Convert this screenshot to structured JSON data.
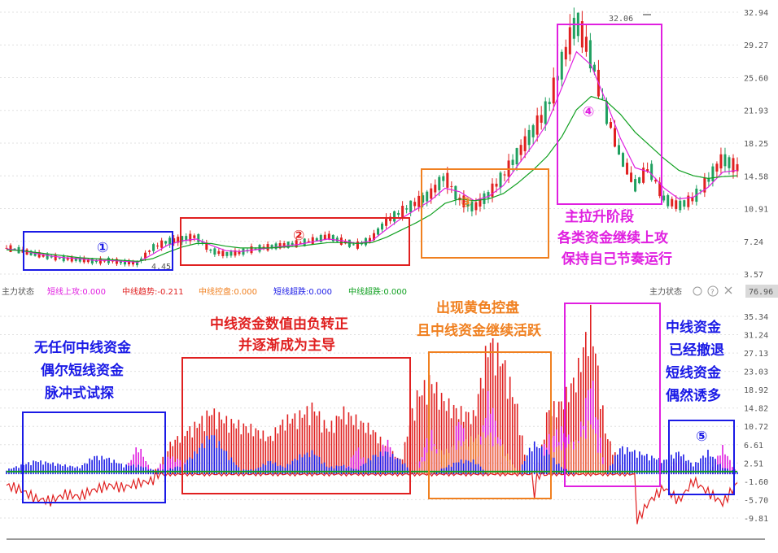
{
  "colors": {
    "blue": "#1a1ae6",
    "red": "#e02020",
    "orange": "#f08020",
    "magenta": "#e020e0",
    "green": "#10a020",
    "candleUp": "#e02020",
    "candleDown": "#20a060",
    "grid": "#e0e0e0"
  },
  "upper_axis": [
    "32.94",
    "29.27",
    "25.60",
    "21.93",
    "18.25",
    "14.58",
    "10.91",
    "7.24",
    "3.57"
  ],
  "lower_axis": [
    "35.34",
    "31.24",
    "27.13",
    "23.03",
    "18.92",
    "14.82",
    "10.72",
    "6.61",
    "2.51",
    "-1.60",
    "-5.70",
    "-9.81"
  ],
  "price_labels": {
    "high": "32.06",
    "low": "4.45"
  },
  "indicator_bar": {
    "title": "主力状态",
    "items": [
      {
        "label": "短线上攻:0.000",
        "color": "#e020e0"
      },
      {
        "label": "中线趋势:-0.211",
        "color": "#e02020"
      },
      {
        "label": "中线控盘:0.000",
        "color": "#f08020"
      },
      {
        "label": "短线超跌:0.000",
        "color": "#1a1ae6"
      },
      {
        "label": "中线超跌:0.000",
        "color": "#10a020"
      }
    ],
    "right_title": "主力状态",
    "right_value": "76.96"
  },
  "annotations": {
    "box1": "①",
    "box2": "②",
    "box3": "③",
    "box4": "④",
    "box5": "⑤",
    "stage4": [
      "主拉升阶段",
      "各类资金继续上攻",
      "保持自己节奏运行"
    ],
    "left": [
      "无任何中线资金",
      "偶尔短线资金",
      "脉冲式试探"
    ],
    "mid": [
      "中线资金数值由负转正",
      "并逐渐成为主导"
    ],
    "yellow": [
      "出现黄色控盘",
      "且中线资金继续活跃"
    ],
    "right": [
      "中线资金",
      "已经撤退",
      "短线资金",
      "偶然诱多"
    ]
  },
  "chart_data": [
    {
      "type": "line",
      "title": "",
      "ylim": [
        3.57,
        32.94
      ],
      "yticks": [
        32.94,
        29.27,
        25.6,
        21.93,
        18.25,
        14.58,
        10.91,
        7.24,
        3.57
      ],
      "grid": true,
      "x": [
        0,
        10,
        20,
        30,
        40,
        50,
        60,
        70,
        80,
        90,
        100,
        110,
        120,
        130,
        140,
        150,
        160,
        170,
        180,
        190,
        200,
        210,
        220,
        230,
        240,
        250,
        260,
        270,
        280,
        290,
        300,
        310,
        320,
        330,
        340,
        350,
        360,
        370,
        380,
        390,
        400,
        410,
        420,
        430,
        440,
        450,
        460,
        470,
        480,
        490,
        500
      ],
      "series": [
        {
          "values": [
            6.5,
            6.2,
            5.8,
            5.5,
            5.3,
            5.2,
            5.0,
            5.1,
            4.9,
            4.8,
            6.5,
            7.2,
            7.5,
            7.8,
            6.2,
            5.8,
            6.0,
            6.4,
            6.6,
            6.8,
            7.0,
            7.3,
            7.8,
            7.2,
            6.8,
            7.5,
            9.5,
            10.5,
            11.5,
            12.5,
            14.5,
            12.0,
            11.0,
            12.5,
            14.5,
            17.0,
            19.5,
            22.0,
            27.0,
            32.0,
            28.0,
            22.0,
            17.0,
            13.5,
            15.5,
            12.0,
            11.2,
            12.0,
            14.0,
            16.5,
            15.5
          ]
        },
        {
          "values": [
            6.4,
            6.2,
            5.9,
            5.6,
            5.4,
            5.3,
            5.1,
            5.1,
            5.0,
            4.9,
            5.8,
            6.8,
            7.3,
            7.5,
            6.8,
            6.2,
            6.1,
            6.3,
            6.5,
            6.7,
            6.9,
            7.2,
            7.5,
            7.3,
            7.0,
            7.3,
            8.6,
            9.8,
            10.8,
            11.8,
            13.2,
            12.8,
            11.8,
            12.3,
            13.5,
            15.8,
            18.0,
            20.5,
            24.5,
            28.5,
            27.0,
            23.0,
            18.8,
            15.5,
            15.0,
            13.2,
            12.0,
            12.2,
            13.3,
            15.0,
            15.2
          ]
        },
        {
          "values": [
            6.3,
            6.2,
            6.0,
            5.8,
            5.6,
            5.4,
            5.3,
            5.2,
            5.1,
            5.0,
            5.3,
            6.0,
            6.6,
            7.0,
            7.0,
            6.7,
            6.5,
            6.5,
            6.5,
            6.6,
            6.7,
            6.9,
            7.1,
            7.1,
            7.0,
            7.1,
            7.7,
            8.5,
            9.3,
            10.2,
            11.5,
            12.0,
            11.8,
            12.0,
            12.6,
            13.8,
            15.2,
            16.8,
            19.0,
            22.0,
            23.5,
            23.0,
            21.5,
            19.5,
            18.0,
            16.5,
            15.2,
            14.6,
            14.3,
            14.5,
            14.6
          ]
        }
      ]
    },
    {
      "type": "bar",
      "title": "",
      "ylim": [
        -9.81,
        35.34
      ],
      "yticks": [
        35.34,
        31.24,
        27.13,
        23.03,
        18.92,
        14.82,
        10.72,
        6.61,
        2.51,
        -1.6,
        -5.7,
        -9.81
      ],
      "grid": true,
      "x": [
        0,
        10,
        20,
        30,
        40,
        50,
        60,
        70,
        80,
        90,
        100,
        110,
        120,
        130,
        140,
        150,
        160,
        170,
        180,
        190,
        200,
        210,
        220,
        230,
        240,
        250,
        260,
        270,
        280,
        290,
        300,
        310,
        320,
        330,
        340,
        350,
        360,
        370,
        380,
        390,
        400,
        410,
        420,
        430,
        440,
        450,
        460,
        470,
        480,
        490,
        500
      ],
      "series": [
        {
          "values": [
            -2.5,
            -3.5,
            -5.5,
            -6.0,
            -4.5,
            -5.0,
            -3.5,
            -2.5,
            -3.0,
            -2.0,
            -1.5,
            6.0,
            9.0,
            11.0,
            14.0,
            12.0,
            11.0,
            10.0,
            8.0,
            12.0,
            13.0,
            15.0,
            10.0,
            14.0,
            12.0,
            10.0,
            6.0,
            3.0,
            17.0,
            21.0,
            16.0,
            14.0,
            13.0,
            30.0,
            25.0,
            14.0,
            -7.0,
            14.0,
            16.0,
            22.0,
            35.0,
            9.0,
            2.0,
            -11.0,
            -6.0,
            -3.0,
            -6.0,
            -1.5,
            -4.0,
            -6.5,
            -2.0
          ]
        },
        {
          "values": [
            0,
            0,
            0,
            0,
            0,
            0,
            0,
            0,
            0,
            6.5,
            0,
            4.0,
            3.0,
            0,
            0,
            0,
            0,
            0,
            0,
            0,
            0,
            0,
            0,
            0,
            6.0,
            0,
            8.0,
            0,
            0,
            10.0,
            0,
            13.0,
            0,
            18.0,
            4.0,
            0,
            0,
            8.0,
            10.0,
            6.0,
            22.0,
            0,
            0,
            0,
            0,
            0,
            4.0,
            0,
            0,
            6.0,
            0
          ]
        },
        {
          "values": [
            0,
            0,
            0,
            0,
            0,
            0,
            0,
            0,
            0,
            0,
            0,
            0,
            0,
            0,
            0,
            0,
            0,
            0,
            0,
            0,
            0,
            0,
            0,
            0,
            0,
            0,
            0,
            0,
            0,
            6.0,
            5.0,
            7.0,
            8.0,
            9.0,
            6.0,
            0,
            0,
            5.0,
            6.5,
            7.0,
            12.0,
            0,
            0,
            0,
            0,
            0,
            0,
            0,
            0,
            0,
            0
          ]
        },
        {
          "values": [
            1.0,
            2.0,
            3.0,
            2.5,
            2.0,
            1.5,
            4.0,
            3.5,
            2.0,
            2.0,
            1.0,
            1.0,
            2.0,
            5.0,
            9.0,
            5.0,
            1.0,
            1.0,
            3.0,
            1.5,
            4.0,
            5.0,
            1.5,
            2.0,
            1.0,
            4.0,
            5.0,
            3.0,
            0,
            0,
            1.5,
            3.0,
            3.0,
            0,
            0,
            0,
            7.0,
            5.0,
            1.5,
            0,
            0,
            0,
            6.0,
            5.0,
            4.0,
            3.0,
            5.0,
            2.0,
            5.0,
            1.5,
            0.5
          ]
        },
        {
          "values": [
            0.5,
            0.5,
            0.5,
            0.5,
            0.5,
            0.5,
            0.5,
            0.5,
            0.5,
            0.5,
            0.5,
            0.8,
            0.8,
            0.8,
            0.8,
            0.8,
            0.8,
            0.8,
            0.8,
            0.8,
            0.8,
            0.8,
            0.8,
            0.8,
            0.8,
            0.8,
            0.8,
            0.8,
            0.8,
            0.8,
            0.8,
            0.8,
            0.8,
            0.8,
            0.8,
            0.8,
            0.8,
            0.8,
            0.8,
            0.8,
            0.8,
            0.8,
            0.8,
            0.8,
            0.8,
            0.8,
            0.8,
            0.8,
            0.8,
            0.8,
            0.8
          ]
        }
      ]
    }
  ]
}
